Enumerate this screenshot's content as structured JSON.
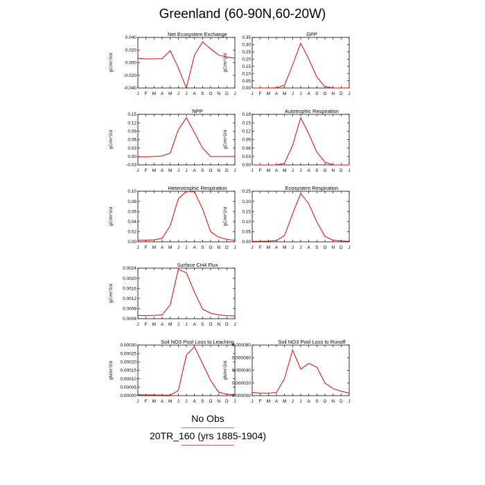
{
  "title": "Greenland (60-90N,60-20W)",
  "line_color": "#e00000",
  "months": [
    "J",
    "F",
    "M",
    "A",
    "M",
    "J",
    "J",
    "A",
    "S",
    "O",
    "N",
    "D",
    "J"
  ],
  "legend": {
    "obs_label": "No Obs",
    "model_label": "20TR_160 (yrs 1885-1904)",
    "line_color": "#d06070"
  },
  "chart_data": [
    {
      "type": "line",
      "title": "Net Ecosystem Exchange",
      "ylabel": "gC/m^2/d",
      "ylim": [
        -0.04,
        0.04
      ],
      "yticks": [
        "-0.040",
        "-0.020",
        "0.000",
        "0.020",
        "0.040"
      ],
      "values": [
        0.007,
        0.006,
        0.006,
        0.0065,
        0.019,
        -0.008,
        -0.04,
        0.012,
        0.033,
        0.022,
        0.012,
        0.009,
        0.007
      ]
    },
    {
      "type": "line",
      "title": "GPP",
      "ylabel": "gC/m^2/d",
      "ylim": [
        0,
        0.35
      ],
      "yticks": [
        "0.00",
        "0.05",
        "0.10",
        "0.15",
        "0.20",
        "0.25",
        "0.30",
        "0.35"
      ],
      "values": [
        0.0,
        0.0,
        0.0,
        0.001,
        0.02,
        0.16,
        0.31,
        0.2,
        0.075,
        0.01,
        0.0,
        0.0,
        0.0
      ]
    },
    {
      "type": "line",
      "title": "NPP",
      "ylabel": "gC/m^2/d",
      "ylim": [
        -0.03,
        0.15
      ],
      "yticks": [
        "-0.03",
        "0.00",
        "0.03",
        "0.06",
        "0.09",
        "0.12",
        "0.15"
      ],
      "values": [
        -0.001,
        -0.001,
        0.0,
        0.002,
        0.012,
        0.095,
        0.138,
        0.085,
        0.03,
        0.0,
        0.0,
        0.0,
        0.0
      ]
    },
    {
      "type": "line",
      "title": "Autotrophic Respiration",
      "ylabel": "gC/m^2/d",
      "ylim": [
        0,
        0.18
      ],
      "yticks": [
        "0.00",
        "0.03",
        "0.06",
        "0.09",
        "0.12",
        "0.15",
        "0.18"
      ],
      "values": [
        0.0,
        0.0,
        0.0,
        0.0,
        0.006,
        0.07,
        0.168,
        0.11,
        0.045,
        0.01,
        0.0,
        0.0,
        0.0
      ]
    },
    {
      "type": "line",
      "title": "Heterotrophic Respiration",
      "ylabel": "gC/m^2/d",
      "ylim": [
        0,
        0.1
      ],
      "yticks": [
        "0.00",
        "0.02",
        "0.04",
        "0.06",
        "0.08",
        "0.10"
      ],
      "values": [
        0.003,
        0.003,
        0.004,
        0.007,
        0.032,
        0.085,
        0.1,
        0.099,
        0.065,
        0.02,
        0.009,
        0.005,
        0.003
      ]
    },
    {
      "type": "line",
      "title": "Ecosystem Respiration",
      "ylabel": "gC/m^2/d",
      "ylim": [
        0,
        0.28
      ],
      "yticks": [
        "0.00",
        "0.05",
        "0.10",
        "0.15",
        "0.20",
        "0.25"
      ],
      "values": [
        0.003,
        0.003,
        0.004,
        0.007,
        0.035,
        0.155,
        0.268,
        0.21,
        0.11,
        0.03,
        0.009,
        0.005,
        0.003
      ]
    },
    {
      "type": "line",
      "title": "Surface CH4 Flux",
      "ylabel": "gC/m^2/d",
      "ylim": [
        0.0004,
        0.0024
      ],
      "yticks": [
        "0.0004",
        "0.0008",
        "0.0012",
        "0.0016",
        "0.0020",
        "0.0024"
      ],
      "values": [
        0.00053,
        0.00052,
        0.00053,
        0.00055,
        0.00095,
        0.00235,
        0.00222,
        0.00145,
        0.00078,
        0.00062,
        0.00055,
        0.00052,
        0.00051
      ]
    },
    {
      "type": "line",
      "title": "Soil NO3 Pool Loss to Leaching",
      "ylabel": "gN/m^2/d",
      "ylim": [
        0,
        0.0003
      ],
      "yticks": [
        "0.00000",
        "0.00005",
        "0.00010",
        "0.00015",
        "0.00020",
        "0.00025",
        "0.00030"
      ],
      "values": [
        5e-06,
        4e-06,
        4e-06,
        3e-06,
        3e-06,
        3e-05,
        0.00024,
        0.00029,
        0.00019,
        9e-05,
        2e-05,
        8e-06,
        6e-06
      ]
    },
    {
      "type": "line",
      "title": "Soil NO3 Pool Loss to Runoff",
      "ylabel": "gN/m^2/d",
      "ylim": [
        0,
        8e-05
      ],
      "yticks": [
        "0.000000",
        "0.000020",
        "0.000040",
        "0.000060",
        "0.000080"
      ],
      "values": [
        5e-06,
        4e-06,
        4e-06,
        5e-06,
        2.7e-05,
        7.2e-05,
        4.2e-05,
        5.1e-05,
        4.5e-05,
        2e-05,
        1.1e-05,
        7e-06,
        4e-06
      ]
    }
  ]
}
